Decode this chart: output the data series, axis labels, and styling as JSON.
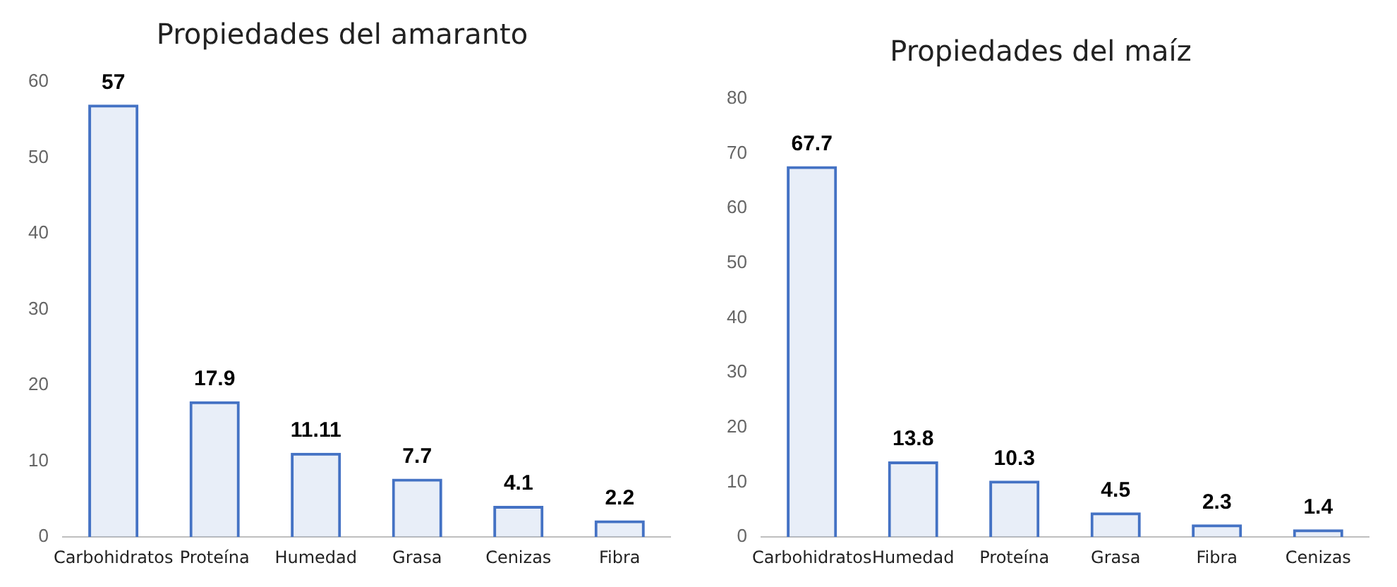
{
  "chart_data": [
    {
      "type": "bar",
      "title": "Propiedades del amaranto",
      "categories": [
        "Carbohidratos",
        "Proteína",
        "Humedad",
        "Grasa",
        "Cenizas",
        "Fibra"
      ],
      "values": [
        57,
        17.9,
        11.11,
        7.7,
        4.1,
        2.2
      ],
      "color": "#4472c4",
      "ylim": [
        0,
        60
      ],
      "yticks": [
        0,
        10,
        20,
        30,
        40,
        50,
        60
      ],
      "grid": false,
      "data_labels": true
    },
    {
      "type": "bar",
      "title": "Propiedades del maíz",
      "categories": [
        "Carbohidratos",
        "Humedad",
        "Proteína",
        "Grasa",
        "Fibra",
        "Cenizas"
      ],
      "values": [
        67.7,
        13.8,
        10.3,
        4.5,
        2.3,
        1.4
      ],
      "color": "#4472c4",
      "ylim": [
        0,
        80
      ],
      "yticks": [
        0,
        10,
        20,
        30,
        40,
        50,
        60,
        70,
        80
      ],
      "grid": false,
      "data_labels": true
    }
  ]
}
